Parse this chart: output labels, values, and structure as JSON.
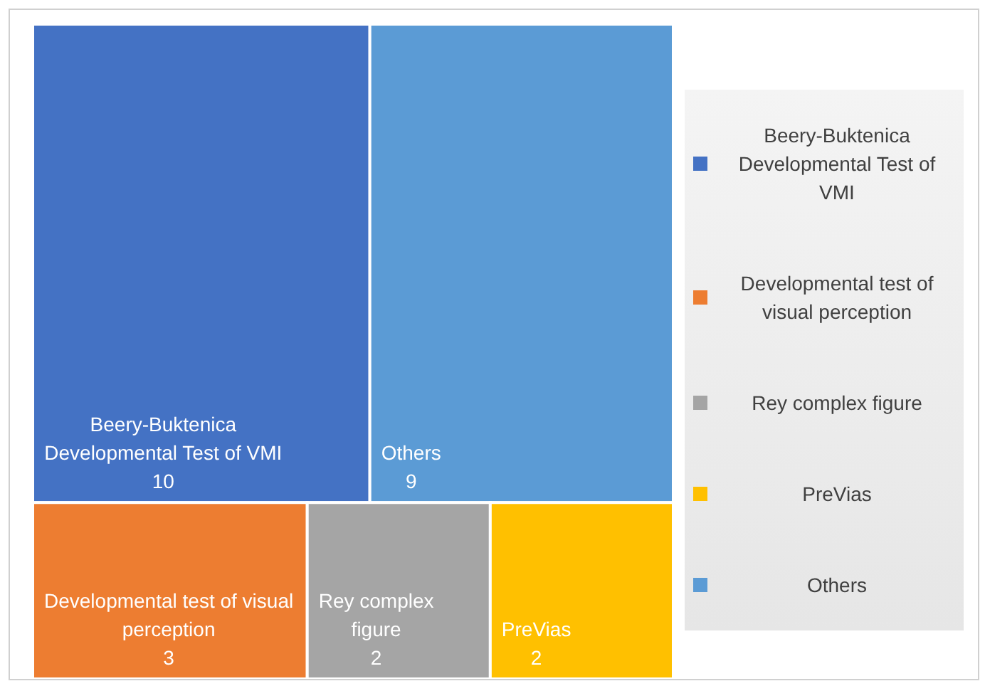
{
  "chart_data": {
    "type": "other",
    "categories": [
      "Beery-Buktenica Developmental Test of VMI",
      "Developmental test of visual perception",
      "Rey complex figure",
      "PreVias",
      "Others"
    ],
    "values": [
      10,
      3,
      2,
      2,
      9
    ],
    "colors": [
      "#4472c4",
      "#ed7d31",
      "#a5a5a5",
      "#ffc000",
      "#5b9bd5"
    ],
    "data_labels": true
  }
}
